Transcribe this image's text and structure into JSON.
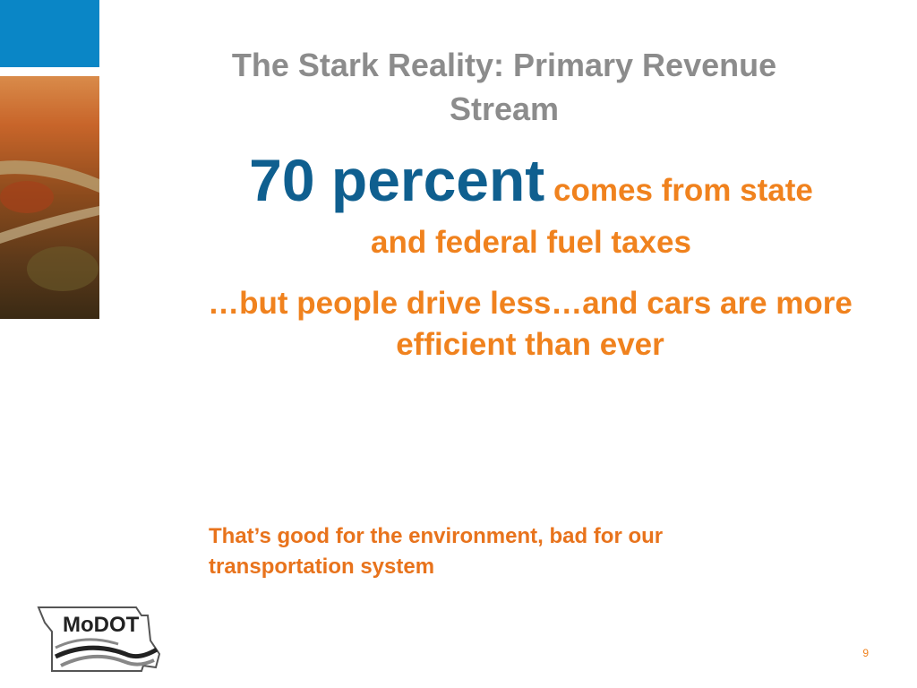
{
  "title": "The Stark Reality: Primary Revenue Stream",
  "headline": {
    "emphasis": "70 percent",
    "rest": "comes from state and federal fuel taxes"
  },
  "subline": "…but people drive less…and cars are more efficient than ever",
  "footnote": "That’s good for the environment, bad for our transportation system",
  "logo": {
    "text": "MoDOT"
  },
  "page_number": 9
}
